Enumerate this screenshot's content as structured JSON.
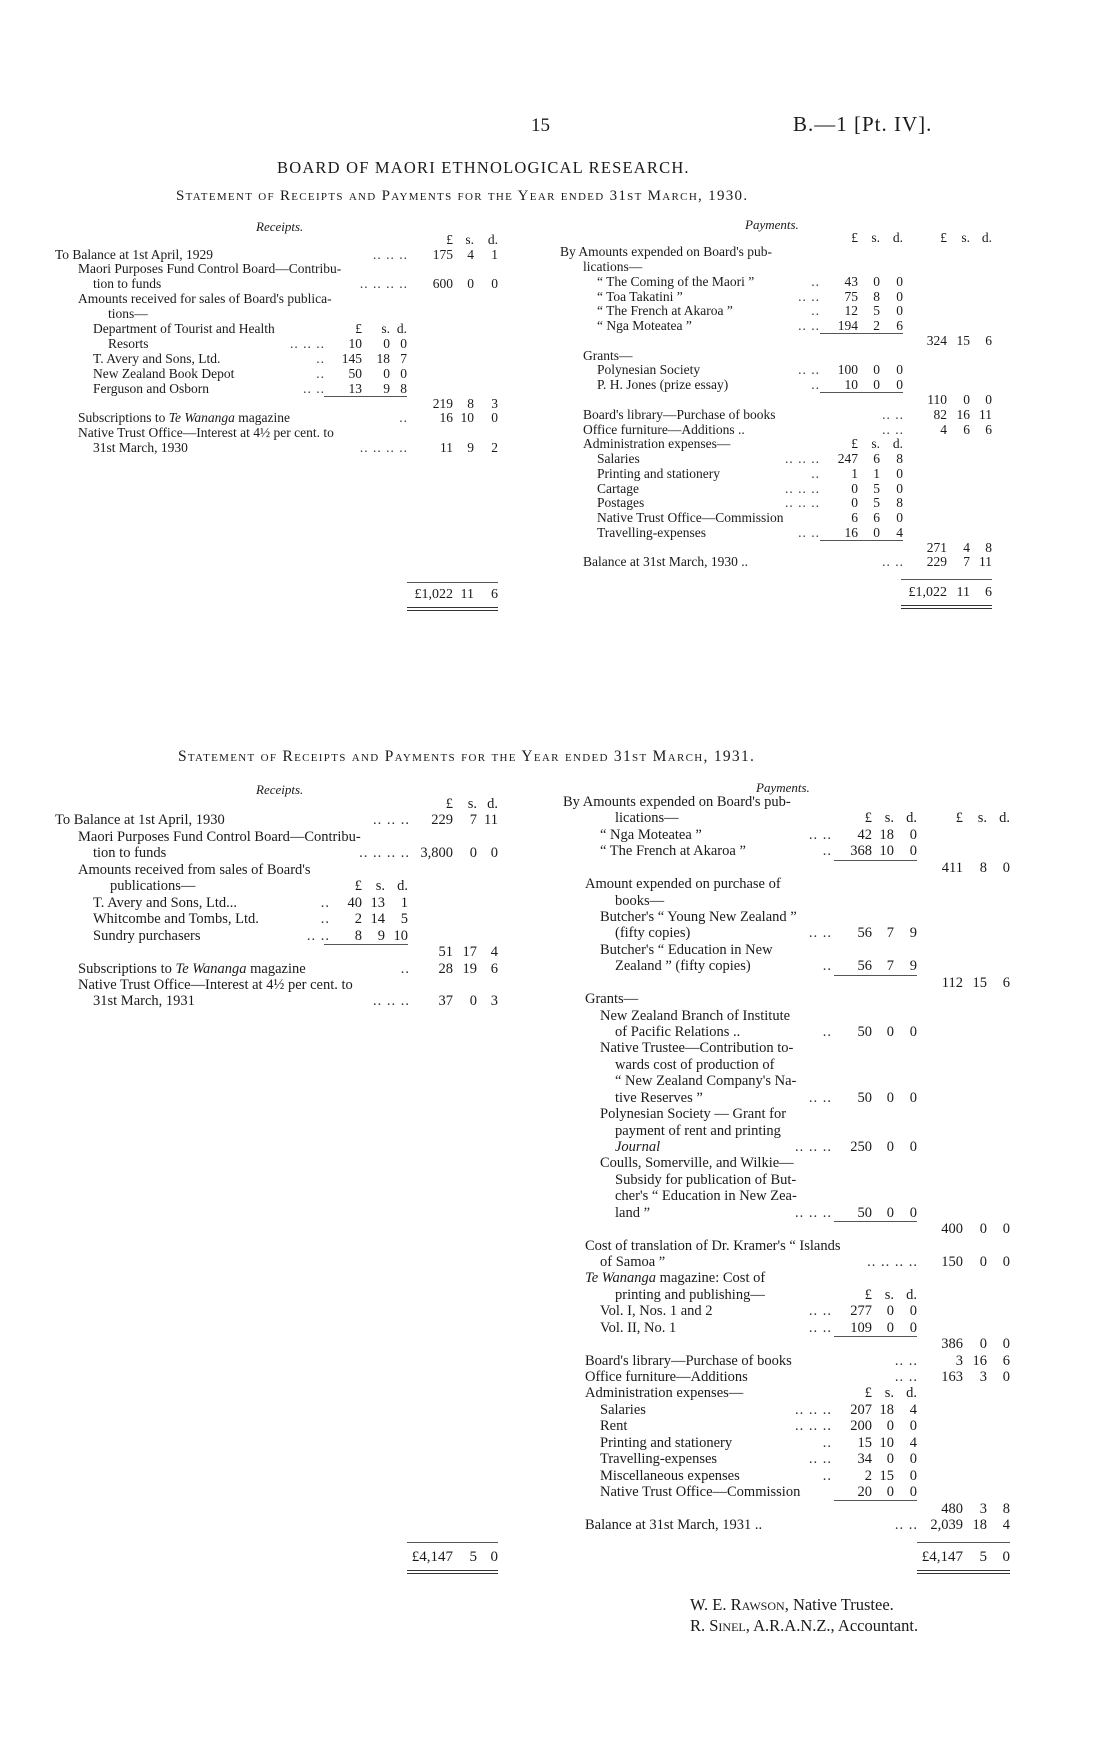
{
  "header": {
    "page_number": "15",
    "reference": "B.—1 [Pt. IV]."
  },
  "title": "BOARD OF MAORI ETHNOLOGICAL RESEARCH.",
  "statements": [
    {
      "subtitle": "Statement of Receipts and Payments for the Year ended 31st March, 1930.",
      "receipts": {
        "heading": "Receipts.",
        "rows": [
          {
            "outer": [
              "£",
              "s.",
              "d."
            ]
          },
          {
            "text": "To Balance at 1st April, 1929",
            "lv": 0,
            "dots": "..        ..        ..",
            "outer": [
              "175",
              "4",
              "1"
            ]
          },
          {
            "text": "Maori Purposes Fund Control Board—Contribu-",
            "lv": 1
          },
          {
            "text": "tion to funds",
            "lv": 2,
            "dots": "..        ..        ..        ..",
            "outer": [
              "600",
              "0",
              "0"
            ]
          },
          {
            "text": "Amounts received for sales of Board's publica-",
            "lv": 1
          },
          {
            "text": "tions—",
            "lv": 3
          },
          {
            "text": "Department of Tourist and Health",
            "lv": 2,
            "inner": [
              "£",
              "s.",
              "d."
            ]
          },
          {
            "text": "Resorts",
            "lv": 3,
            "dots": "..        ..        ..",
            "inner": [
              "10",
              "0",
              "0"
            ]
          },
          {
            "text": "T. Avery and Sons, Ltd.",
            "lv": 2,
            "dots": "..",
            "inner": [
              "145",
              "18",
              "7"
            ]
          },
          {
            "text": "New Zealand Book Depot",
            "lv": 2,
            "dots": "..",
            "inner": [
              "50",
              "0",
              "0"
            ]
          },
          {
            "text": "Ferguson and Osborn",
            "lv": 2,
            "dots": "..        ..",
            "inner": [
              "13",
              "9",
              "8"
            ]
          },
          {
            "rule": true,
            "outer": [
              "219",
              "8",
              "3"
            ]
          },
          {
            "pre": "Subscriptions to ",
            "em": "Te Wananga",
            "post": " magazine",
            "lv": 1,
            "dots": "..",
            "outer": [
              "16",
              "10",
              "0"
            ]
          },
          {
            "text": "Native Trust Office—Interest at 4½ per cent. to",
            "lv": 1
          },
          {
            "text": "31st March, 1930",
            "lv": 2,
            "dots": "..        ..        ..        ..",
            "outer": [
              "11",
              "9",
              "2"
            ]
          }
        ],
        "total": [
          "£1,022",
          "11",
          "6"
        ]
      },
      "payments": {
        "heading": "Payments.",
        "rows": [
          {
            "inner": [
              "£",
              "s.",
              "d."
            ],
            "outer": [
              "£",
              "s.",
              "d."
            ]
          },
          {
            "text": "By Amounts expended on Board's pub-",
            "lv": 0
          },
          {
            "text": "lications—",
            "lv": 1
          },
          {
            "text": "“ The Coming of the Maori ”",
            "lv": 2,
            "dots": "..",
            "inner": [
              "43",
              "0",
              "0"
            ]
          },
          {
            "text": "“ Toa Takatini ”",
            "lv": 2,
            "dots": "..        ..",
            "inner": [
              "75",
              "8",
              "0"
            ]
          },
          {
            "text": "“ The French at Akaroa ”",
            "lv": 2,
            "dots": "..",
            "inner": [
              "12",
              "5",
              "0"
            ]
          },
          {
            "text": "“ Nga Moteatea ”",
            "lv": 2,
            "dots": "..        ..",
            "inner": [
              "194",
              "2",
              "6"
            ]
          },
          {
            "rule": true,
            "outer": [
              "324",
              "15",
              "6"
            ]
          },
          {
            "text": "Grants—",
            "lv": 1
          },
          {
            "text": "Polynesian Society",
            "lv": 2,
            "dots": "..        ..",
            "inner": [
              "100",
              "0",
              "0"
            ]
          },
          {
            "text": "P. H. Jones (prize essay)",
            "lv": 2,
            "dots": "..",
            "inner": [
              "10",
              "0",
              "0"
            ]
          },
          {
            "rule": true,
            "outer": [
              "110",
              "0",
              "0"
            ]
          },
          {
            "text": "Board's library—Purchase of books",
            "lv": 1,
            "dots": "..              ..",
            "outer": [
              "82",
              "16",
              "11"
            ]
          },
          {
            "text": "Office furniture—Additions  ..",
            "lv": 1,
            "dots": "..              ..",
            "outer": [
              "4",
              "6",
              "6"
            ]
          },
          {
            "text": "Administration expenses—",
            "lv": 1,
            "inner": [
              "£",
              "s.",
              "d."
            ]
          },
          {
            "text": "Salaries",
            "lv": 2,
            "dots": "..        ..        ..",
            "inner": [
              "247",
              "6",
              "8"
            ]
          },
          {
            "text": "Printing and stationery",
            "lv": 2,
            "dots": "..",
            "inner": [
              "1",
              "1",
              "0"
            ]
          },
          {
            "text": "Cartage",
            "lv": 2,
            "dots": "..        ..        ..",
            "inner": [
              "0",
              "5",
              "0"
            ]
          },
          {
            "text": "Postages",
            "lv": 2,
            "dots": "..        ..        ..",
            "inner": [
              "0",
              "5",
              "8"
            ]
          },
          {
            "text": "Native Trust Office—Commission",
            "lv": 2,
            "inner": [
              "6",
              "6",
              "0"
            ]
          },
          {
            "text": "Travelling-expenses",
            "lv": 2,
            "dots": "..        ..",
            "inner": [
              "16",
              "0",
              "4"
            ]
          },
          {
            "rule": true,
            "outer": [
              "271",
              "4",
              "8"
            ]
          },
          {
            "text": "Balance at 31st March, 1930 ..",
            "lv": 1,
            "dots": "..              ..",
            "outer": [
              "229",
              "7",
              "11"
            ]
          }
        ],
        "total": [
          "£1,022",
          "11",
          "6"
        ]
      }
    },
    {
      "subtitle": "Statement of Receipts and Payments for the Year ended 31st March, 1931.",
      "receipts": {
        "heading": "Receipts.",
        "rows": [
          {
            "outer": [
              "£",
              "s.",
              "d."
            ]
          },
          {
            "text": "To Balance at 1st April, 1930",
            "lv": 0,
            "dots": "..        ..        ..",
            "outer": [
              "229",
              "7",
              "11"
            ]
          },
          {
            "text": "Maori Purposes Fund Control Board—Contribu-",
            "lv": 1
          },
          {
            "text": "tion to funds",
            "lv": 2,
            "dots": "..        ..        ..        ..",
            "outer": [
              "3,800",
              "0",
              "0"
            ]
          },
          {
            "text": "Amounts received from sales of Board's",
            "lv": 1
          },
          {
            "text": "publications—",
            "lv": 3,
            "inner": [
              "£",
              "s.",
              "d."
            ]
          },
          {
            "text": "T. Avery and Sons, Ltd...",
            "lv": 2,
            "dots": "..",
            "inner": [
              "40",
              "13",
              "1"
            ]
          },
          {
            "text": "Whitcombe and Tombs, Ltd.",
            "lv": 2,
            "dots": "..",
            "inner": [
              "2",
              "14",
              "5"
            ]
          },
          {
            "text": "Sundry purchasers",
            "lv": 2,
            "dots": "..        ..",
            "inner": [
              "8",
              "9",
              "10"
            ]
          },
          {
            "rule": true,
            "outer": [
              "51",
              "17",
              "4"
            ]
          },
          {
            "pre": "Subscriptions to ",
            "em": "Te Wananga",
            "post": " magazine",
            "lv": 1,
            "dots": "..",
            "outer": [
              "28",
              "19",
              "6"
            ]
          },
          {
            "text": "Native Trust Office—Interest at 4½ per cent. to",
            "lv": 1
          },
          {
            "text": "31st March, 1931",
            "lv": 2,
            "dots": "..        ..        ..",
            "outer": [
              "37",
              "0",
              "3"
            ]
          }
        ],
        "total": [
          "£4,147",
          "5",
          "0"
        ]
      },
      "payments": {
        "heading": "Payments.",
        "rows": [
          {
            "text": "By Amounts expended on Board's pub-",
            "lv": 0
          },
          {
            "text": "lications—",
            "lv": 3,
            "inner": [
              "£",
              "s.",
              "d."
            ],
            "outer": [
              "£",
              "s.",
              "d."
            ]
          },
          {
            "text": "“ Nga Moteatea ”",
            "lv": 2,
            "dots": "..        ..",
            "inner": [
              "42",
              "18",
              "0"
            ]
          },
          {
            "text": "“ The French at Akaroa ”",
            "lv": 2,
            "dots": "..",
            "inner": [
              "368",
              "10",
              "0"
            ]
          },
          {
            "rule": true,
            "outer": [
              "411",
              "8",
              "0"
            ]
          },
          {
            "text": "Amount expended on purchase of",
            "lv": 1
          },
          {
            "text": "books—",
            "lv": 3
          },
          {
            "text": "Butcher's “ Young New Zealand ”",
            "lv": 2
          },
          {
            "text": "(fifty copies)",
            "lv": 3,
            "dots": "..        ..",
            "inner": [
              "56",
              "7",
              "9"
            ]
          },
          {
            "text": "Butcher's “ Education in New",
            "lv": 2
          },
          {
            "text": "Zealand ” (fifty copies)",
            "lv": 3,
            "dots": "..",
            "inner": [
              "56",
              "7",
              "9"
            ]
          },
          {
            "rule": true,
            "outer": [
              "112",
              "15",
              "6"
            ]
          },
          {
            "text": "Grants—",
            "lv": 1
          },
          {
            "text": "New Zealand Branch of Institute",
            "lv": 2
          },
          {
            "text": "of Pacific Relations ..",
            "lv": 3,
            "dots": "..",
            "inner": [
              "50",
              "0",
              "0"
            ]
          },
          {
            "text": "Native Trustee—Contribution to-",
            "lv": 2
          },
          {
            "text": "wards cost of production of",
            "lv": 3
          },
          {
            "text": "“ New Zealand Company's Na-",
            "lv": 3
          },
          {
            "text": "tive Reserves ”",
            "lv": 3,
            "dots": "..        ..",
            "inner": [
              "50",
              "0",
              "0"
            ]
          },
          {
            "text": "Polynesian Society — Grant for",
            "lv": 2
          },
          {
            "text": "payment of rent and printing",
            "lv": 3
          },
          {
            "pre": "",
            "em": "Journal",
            "post": "",
            "lv": 3,
            "dots": "..        ..        ..",
            "inner": [
              "250",
              "0",
              "0"
            ]
          },
          {
            "text": "Coulls, Somerville, and Wilkie—",
            "lv": 2
          },
          {
            "text": "Subsidy for publication of But-",
            "lv": 3
          },
          {
            "text": "cher's “ Education in New Zea-",
            "lv": 3
          },
          {
            "text": "land ”",
            "lv": 3,
            "dots": "..        ..        ..",
            "inner": [
              "50",
              "0",
              "0"
            ]
          },
          {
            "rule": true,
            "outer": [
              "400",
              "0",
              "0"
            ]
          },
          {
            "text": "Cost of translation of Dr. Kramer's “ Islands",
            "lv": 1
          },
          {
            "text": "of Samoa ”",
            "lv": 2,
            "dots": "..        ..        ..        ..",
            "outer": [
              "150",
              "0",
              "0"
            ]
          },
          {
            "pre": "",
            "em": "Te Wananga",
            "post": " magazine: Cost of",
            "lv": 1
          },
          {
            "text": "printing and publishing—",
            "lv": 3,
            "inner": [
              "£",
              "s.",
              "d."
            ]
          },
          {
            "text": "Vol. I, Nos. 1 and 2",
            "lv": 2,
            "dots": "..        ..",
            "inner": [
              "277",
              "0",
              "0"
            ]
          },
          {
            "text": "Vol. II, No. 1",
            "lv": 2,
            "dots": "..        ..",
            "inner": [
              "109",
              "0",
              "0"
            ]
          },
          {
            "rule": true,
            "outer": [
              "386",
              "0",
              "0"
            ]
          },
          {
            "text": "Board's library—Purchase of books",
            "lv": 1,
            "dots": "..              ..",
            "outer": [
              "3",
              "16",
              "6"
            ]
          },
          {
            "text": "Office furniture—Additions",
            "lv": 1,
            "dots": "..              ..",
            "outer": [
              "163",
              "3",
              "0"
            ]
          },
          {
            "text": "Administration expenses—",
            "lv": 1,
            "inner": [
              "£",
              "s.",
              "d."
            ]
          },
          {
            "text": "Salaries",
            "lv": 2,
            "dots": "..        ..        ..",
            "inner": [
              "207",
              "18",
              "4"
            ]
          },
          {
            "text": "Rent",
            "lv": 2,
            "dots": "..        ..        ..",
            "inner": [
              "200",
              "0",
              "0"
            ]
          },
          {
            "text": "Printing and stationery",
            "lv": 2,
            "dots": "..",
            "inner": [
              "15",
              "10",
              "4"
            ]
          },
          {
            "text": "Travelling-expenses",
            "lv": 2,
            "dots": "..        ..",
            "inner": [
              "34",
              "0",
              "0"
            ]
          },
          {
            "text": "Miscellaneous expenses",
            "lv": 2,
            "dots": "..",
            "inner": [
              "2",
              "15",
              "0"
            ]
          },
          {
            "text": "Native Trust Office—Commission",
            "lv": 2,
            "inner": [
              "20",
              "0",
              "0"
            ]
          },
          {
            "rule": true,
            "outer": [
              "480",
              "3",
              "8"
            ]
          },
          {
            "text": "Balance at 31st March, 1931 ..",
            "lv": 1,
            "dots": "..              ..",
            "outer": [
              "2,039",
              "18",
              "4"
            ]
          }
        ],
        "total": [
          "£4,147",
          "5",
          "0"
        ]
      }
    }
  ],
  "signatures": [
    {
      "name": "W. E. Rawson",
      "role": ", Native Trustee."
    },
    {
      "name": "R. Sinel",
      "role": ", A.R.A.N.Z., Accountant."
    }
  ]
}
